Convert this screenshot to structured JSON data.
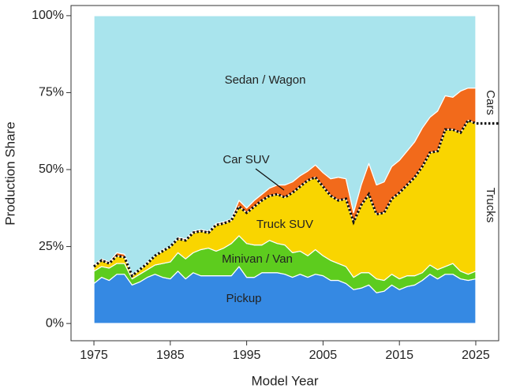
{
  "chart_data": {
    "type": "stacked-area",
    "xlabel": "Model Year",
    "ylabel": "Production Share",
    "x": [
      1975,
      1976,
      1977,
      1978,
      1979,
      1980,
      1981,
      1982,
      1983,
      1984,
      1985,
      1986,
      1987,
      1988,
      1989,
      1990,
      1991,
      1992,
      1993,
      1994,
      1995,
      1996,
      1997,
      1998,
      1999,
      2000,
      2001,
      2002,
      2003,
      2004,
      2005,
      2006,
      2007,
      2008,
      2009,
      2010,
      2011,
      2012,
      2013,
      2014,
      2015,
      2016,
      2017,
      2018,
      2019,
      2020,
      2021,
      2022,
      2023,
      2024,
      2025
    ],
    "series": [
      {
        "name": "Pickup",
        "color": "#3589e3",
        "values": [
          13,
          15,
          14,
          16,
          16,
          12.5,
          13.5,
          15,
          16,
          15,
          14.5,
          17,
          14.5,
          16.5,
          15.5,
          15.5,
          15.5,
          15.5,
          15.5,
          18.5,
          15,
          15,
          16.5,
          16.5,
          16.5,
          16,
          15,
          16,
          15,
          16,
          15.5,
          14,
          14,
          13,
          11,
          11.5,
          12.5,
          10,
          10.5,
          12.5,
          11,
          12,
          12.5,
          14,
          16,
          14.5,
          16,
          16,
          14.5,
          14,
          14.5
        ]
      },
      {
        "name": "Minivan / Van",
        "color": "#5dcc1e",
        "values": [
          4,
          3.5,
          4,
          3.5,
          3.5,
          2,
          2.5,
          2.5,
          3,
          4.5,
          5.5,
          6,
          6.5,
          6.5,
          8.5,
          9,
          8,
          9,
          10.5,
          10,
          11,
          10.5,
          9,
          10.5,
          9.5,
          9.5,
          8,
          7.5,
          7,
          8,
          6.5,
          6.5,
          5.5,
          5.5,
          4,
          5,
          4,
          4.5,
          3.5,
          3.5,
          3.5,
          3.5,
          3,
          2.5,
          3,
          3,
          2.5,
          3.5,
          2.5,
          2,
          2.5
        ]
      },
      {
        "name": "Truck SUV",
        "color": "#f9d500",
        "values": [
          1.5,
          2,
          1.5,
          2.5,
          2,
          1,
          1.5,
          2,
          3,
          4,
          5,
          4.5,
          6,
          6.5,
          6,
          5,
          8.5,
          8,
          7.5,
          9.5,
          10,
          12.5,
          14.5,
          14.5,
          16,
          15.5,
          19.5,
          21,
          24.5,
          23.5,
          22.5,
          21,
          20.5,
          22,
          18,
          22,
          25.5,
          21,
          22,
          24.5,
          28,
          29.5,
          32,
          34.5,
          36.5,
          38.5,
          44.5,
          43.5,
          45,
          50,
          48
        ]
      },
      {
        "name": "Car SUV",
        "color": "#f26a1b",
        "values": [
          0.5,
          0.5,
          0.5,
          1,
          1,
          0.5,
          0,
          0.5,
          0,
          0.5,
          0,
          0.5,
          0.5,
          0.5,
          0.5,
          0.5,
          0.5,
          0.5,
          0.5,
          2,
          1.5,
          2,
          2,
          2.5,
          3,
          4,
          3.5,
          3.5,
          3,
          4,
          4.5,
          5.5,
          7.5,
          6.5,
          3,
          6.5,
          10,
          9.5,
          10,
          10.5,
          10.5,
          11,
          11.5,
          12.5,
          11.5,
          13,
          11,
          10.5,
          13.5,
          10.5,
          11.5
        ]
      },
      {
        "name": "Sedan / Wagon",
        "color": "#a9e4ed",
        "values": [
          81,
          79,
          80,
          77,
          77.5,
          84,
          82.5,
          80,
          78,
          76,
          75,
          72,
          72.5,
          70,
          69.5,
          70,
          67.5,
          67,
          66,
          60,
          62.5,
          60,
          58,
          56,
          55,
          55,
          54,
          52,
          50.5,
          48.5,
          51,
          53,
          52.5,
          53,
          64,
          55,
          48,
          55,
          54,
          49,
          47,
          44,
          41,
          36.5,
          33,
          31,
          26,
          26.5,
          24.5,
          23.5,
          23.5
        ]
      }
    ],
    "annotations": [
      "Cars",
      "Trucks"
    ],
    "xlim": [
      1972,
      2028
    ],
    "xticks": [
      1975,
      1985,
      1995,
      2005,
      2015,
      2025
    ],
    "ylim": [
      -5.6,
      103.3
    ],
    "yticks": [
      {
        "value": 0,
        "label": "0%"
      },
      {
        "value": 25,
        "label": "25%"
      },
      {
        "value": 50,
        "label": "50%"
      },
      {
        "value": 75,
        "label": "75%"
      },
      {
        "value": 100,
        "label": "100%"
      }
    ]
  }
}
